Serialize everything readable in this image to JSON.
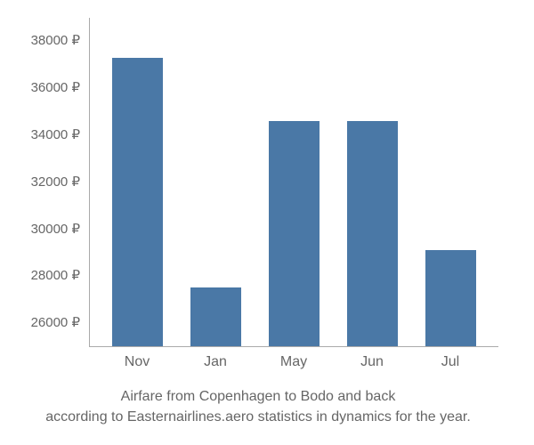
{
  "chart": {
    "type": "bar",
    "categories": [
      "Nov",
      "Jan",
      "May",
      "Jun",
      "Jul"
    ],
    "values": [
      37300,
      27500,
      34600,
      34600,
      29100
    ],
    "bar_color": "#4a78a6",
    "background_color": "#ffffff",
    "axis_color": "#aaaaaa",
    "label_color": "#666666",
    "y_tick_labels": [
      "38000 ₽",
      "36000 ₽",
      "34000 ₽",
      "32000 ₽",
      "30000 ₽",
      "28000 ₽",
      "26000 ₽"
    ],
    "y_min": 25000,
    "y_max": 39000,
    "y_tick_top": 38000,
    "y_tick_bottom": 26000,
    "bar_width_pct": 13,
    "label_fontsize": 15,
    "caption_fontsize": 16
  },
  "caption": {
    "line1": "Airfare from Copenhagen to Bodo and back",
    "line2": "according to Easternairlines.aero statistics in dynamics for the year."
  }
}
